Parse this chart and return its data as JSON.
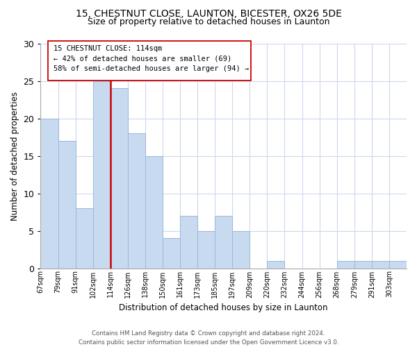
{
  "title_line1": "15, CHESTNUT CLOSE, LAUNTON, BICESTER, OX26 5DE",
  "title_line2": "Size of property relative to detached houses in Launton",
  "xlabel": "Distribution of detached houses by size in Launton",
  "ylabel": "Number of detached properties",
  "bin_labels": [
    "67sqm",
    "79sqm",
    "91sqm",
    "102sqm",
    "114sqm",
    "126sqm",
    "138sqm",
    "150sqm",
    "161sqm",
    "173sqm",
    "185sqm",
    "197sqm",
    "209sqm",
    "220sqm",
    "232sqm",
    "244sqm",
    "256sqm",
    "268sqm",
    "279sqm",
    "291sqm",
    "303sqm"
  ],
  "bar_heights": [
    20,
    17,
    8,
    25,
    24,
    18,
    15,
    4,
    7,
    5,
    7,
    5,
    0,
    1,
    0,
    0,
    0,
    1,
    1,
    1,
    1
  ],
  "bar_color": "#c8daf0",
  "bar_edge_color": "#9ab8d8",
  "highlight_line_color": "#cc0000",
  "highlight_line_label_index": 4,
  "annotation_text_line1": "15 CHESTNUT CLOSE: 114sqm",
  "annotation_text_line2": "← 42% of detached houses are smaller (69)",
  "annotation_text_line3": "58% of semi-detached houses are larger (94) →",
  "annotation_box_color": "#cc0000",
  "ylim": [
    0,
    30
  ],
  "yticks": [
    0,
    5,
    10,
    15,
    20,
    25,
    30
  ],
  "footnote_line1": "Contains HM Land Registry data © Crown copyright and database right 2024.",
  "footnote_line2": "Contains public sector information licensed under the Open Government Licence v3.0.",
  "background_color": "#ffffff",
  "grid_color": "#ccd8ec"
}
